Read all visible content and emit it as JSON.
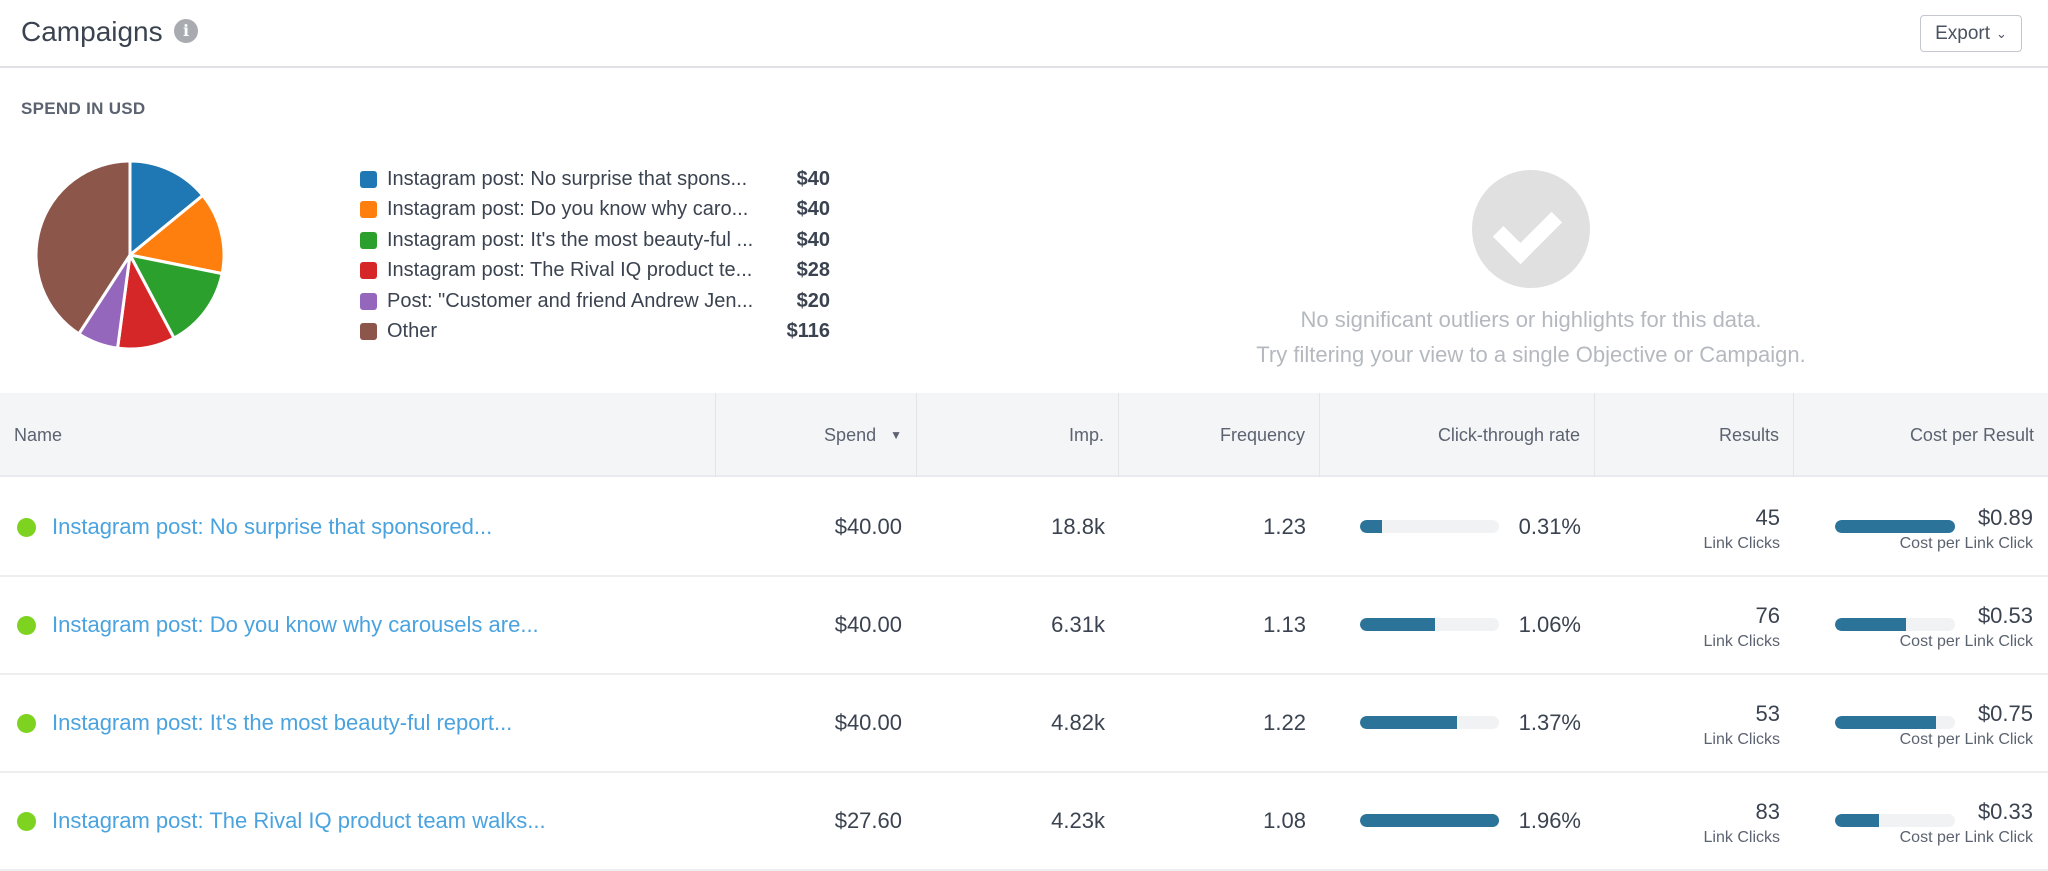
{
  "header": {
    "title": "Campaigns",
    "info_icon": "info-icon",
    "export_label": "Export"
  },
  "spend": {
    "label": "SPEND IN USD"
  },
  "chart_data": {
    "type": "pie",
    "title": "SPEND IN USD",
    "categories": [
      "Instagram post: No surprise that spons...",
      "Instagram post: Do you know why caro...",
      "Instagram post: It's the most beauty-ful ...",
      "Instagram post: The Rival IQ product te...",
      "Post: \"Customer and friend Andrew Jen...",
      "Other"
    ],
    "values": [
      40,
      40,
      40,
      28,
      20,
      116
    ],
    "labels": [
      "$40",
      "$40",
      "$40",
      "$28",
      "$20",
      "$116"
    ],
    "colors": [
      "#1f77b4",
      "#ff7f0e",
      "#2ca02c",
      "#d62728",
      "#9467bd",
      "#8c564b"
    ],
    "legend": "right"
  },
  "empty": {
    "line1": "No significant outliers or highlights for this data.",
    "line2": "Try filtering your view to a single Objective or Campaign."
  },
  "table": {
    "columns": [
      "Name",
      "Spend",
      "Imp.",
      "Frequency",
      "Click-through rate",
      "Results",
      "Cost per Result"
    ],
    "sorted_by": "Spend",
    "rows": [
      {
        "name": "Instagram post: No surprise that sponsored...",
        "spend": "$40.00",
        "imp": "18.8k",
        "freq": "1.23",
        "ctr": "0.31%",
        "ctr_pct": 0.31,
        "results": "45",
        "results_label": "Link Clicks",
        "cpr": "$0.89",
        "cpr_val": 0.89,
        "cpr_label": "Cost per Link Click",
        "status_color": "#7ed321"
      },
      {
        "name": "Instagram post: Do you know why carousels are...",
        "spend": "$40.00",
        "imp": "6.31k",
        "freq": "1.13",
        "ctr": "1.06%",
        "ctr_pct": 1.06,
        "results": "76",
        "results_label": "Link Clicks",
        "cpr": "$0.53",
        "cpr_val": 0.53,
        "cpr_label": "Cost per Link Click",
        "status_color": "#7ed321"
      },
      {
        "name": "Instagram post: It's the most beauty-ful report...",
        "spend": "$40.00",
        "imp": "4.82k",
        "freq": "1.22",
        "ctr": "1.37%",
        "ctr_pct": 1.37,
        "results": "53",
        "results_label": "Link Clicks",
        "cpr": "$0.75",
        "cpr_val": 0.75,
        "cpr_label": "Cost per Link Click",
        "status_color": "#7ed321"
      },
      {
        "name": "Instagram post: The Rival IQ product team walks...",
        "spend": "$27.60",
        "imp": "4.23k",
        "freq": "1.08",
        "ctr": "1.96%",
        "ctr_pct": 1.96,
        "results": "83",
        "results_label": "Link Clicks",
        "cpr": "$0.33",
        "cpr_val": 0.33,
        "cpr_label": "Cost per Link Click",
        "status_color": "#7ed321"
      }
    ]
  }
}
